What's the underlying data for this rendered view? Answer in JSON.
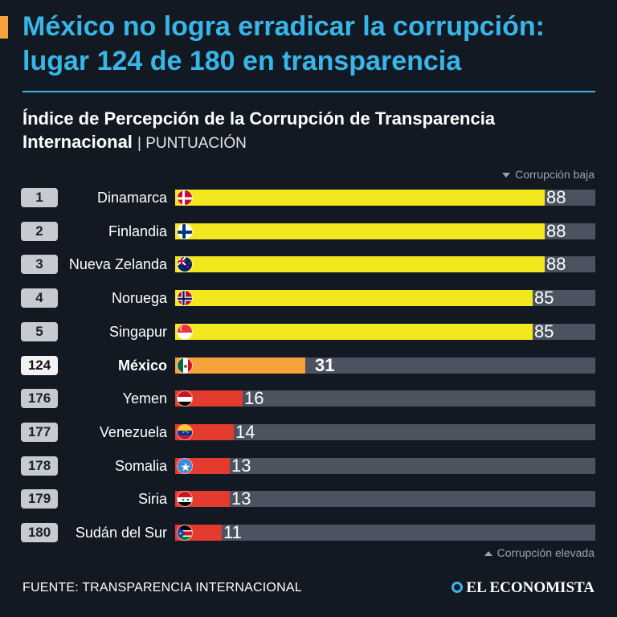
{
  "header": {
    "title": "México no logra erradicar la corrupción: lugar 124 de 180 en transparencia",
    "subtitle_strong": "Índice de Percepción de la Corrupción de Transparencia Internacional",
    "subtitle_light": "| PUNTUACIÓN"
  },
  "legend": {
    "top": "Corrupción baja",
    "bottom": "Corrupción elevada"
  },
  "chart_data": {
    "type": "bar",
    "orientation": "horizontal",
    "title": "Índice de Percepción de la Corrupción de Transparencia Internacional",
    "xlabel": "PUNTUACIÓN",
    "xlim": [
      0,
      100
    ],
    "rows": [
      {
        "rank": "1",
        "country": "Dinamarca",
        "value": 88,
        "color": "#f3e81d",
        "flag": "denmark",
        "highlight": false
      },
      {
        "rank": "2",
        "country": "Finlandia",
        "value": 88,
        "color": "#f3e81d",
        "flag": "finland",
        "highlight": false
      },
      {
        "rank": "3",
        "country": "Nueva Zelanda",
        "value": 88,
        "color": "#f3e81d",
        "flag": "new-zealand",
        "highlight": false
      },
      {
        "rank": "4",
        "country": "Noruega",
        "value": 85,
        "color": "#f3e81d",
        "flag": "norway",
        "highlight": false
      },
      {
        "rank": "5",
        "country": "Singapur",
        "value": 85,
        "color": "#f3e81d",
        "flag": "singapore",
        "highlight": false
      },
      {
        "rank": "124",
        "country": "México",
        "value": 31,
        "color": "#f5a23a",
        "flag": "mexico",
        "highlight": true
      },
      {
        "rank": "176",
        "country": "Yemen",
        "value": 16,
        "color": "#e33b2e",
        "flag": "yemen",
        "highlight": false
      },
      {
        "rank": "177",
        "country": "Venezuela",
        "value": 14,
        "color": "#e33b2e",
        "flag": "venezuela",
        "highlight": false
      },
      {
        "rank": "178",
        "country": "Somalia",
        "value": 13,
        "color": "#e33b2e",
        "flag": "somalia",
        "highlight": false
      },
      {
        "rank": "179",
        "country": "Siria",
        "value": 13,
        "color": "#e33b2e",
        "flag": "syria",
        "highlight": false
      },
      {
        "rank": "180",
        "country": "Sudán del Sur",
        "value": 11,
        "color": "#e33b2e",
        "flag": "south-sudan",
        "highlight": false
      }
    ]
  },
  "footer": {
    "source": "FUENTE: TRANSPARENCIA INTERNACIONAL",
    "logo": "EL ECONOMISTA"
  }
}
